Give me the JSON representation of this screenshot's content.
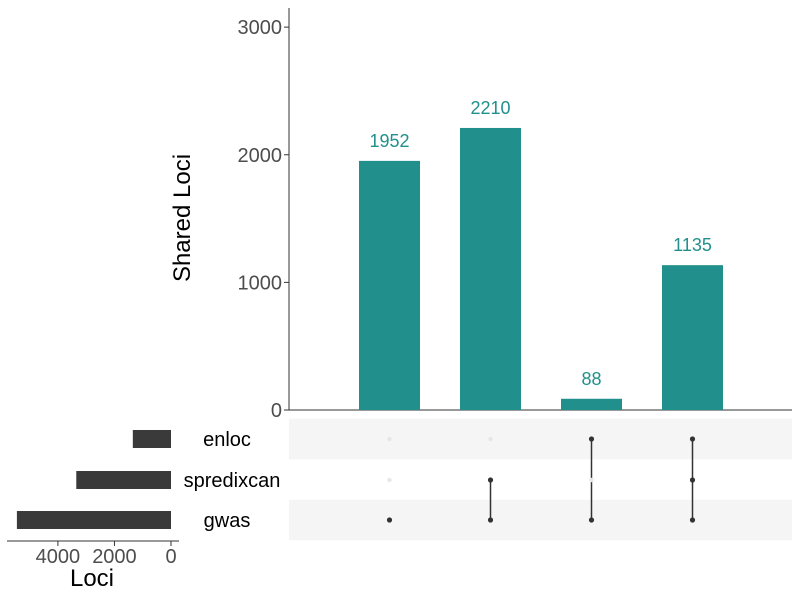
{
  "chart_data": {
    "type": "bar",
    "subtype": "upset",
    "ylabel": "Shared Loci",
    "ylim": [
      0,
      3150
    ],
    "yticks": [
      0,
      1000,
      2000,
      3000
    ],
    "sets": [
      "enloc",
      "spredixcan",
      "gwas"
    ],
    "intersections": [
      {
        "members": [
          "gwas"
        ],
        "value": 1952
      },
      {
        "members": [
          "spredixcan",
          "gwas"
        ],
        "value": 2210
      },
      {
        "members": [
          "enloc",
          "gwas"
        ],
        "value": 88
      },
      {
        "members": [
          "enloc",
          "spredixcan",
          "gwas"
        ],
        "value": 1135
      }
    ],
    "set_size": {
      "xlabel": "Loci",
      "reversed": true,
      "xlim": [
        0,
        5800
      ],
      "xticks": [
        4000,
        2000,
        0
      ],
      "values": [
        1350,
        3350,
        5450
      ]
    },
    "colors": {
      "bars": "#21908c",
      "bar_labels": "#21908c",
      "set_bars": "#3a3a3a",
      "dot_active": "#333333",
      "dot_inactive": "#e6e6e6",
      "stripe": "#f5f5f5",
      "axis": "#333333"
    },
    "grid": false
  }
}
